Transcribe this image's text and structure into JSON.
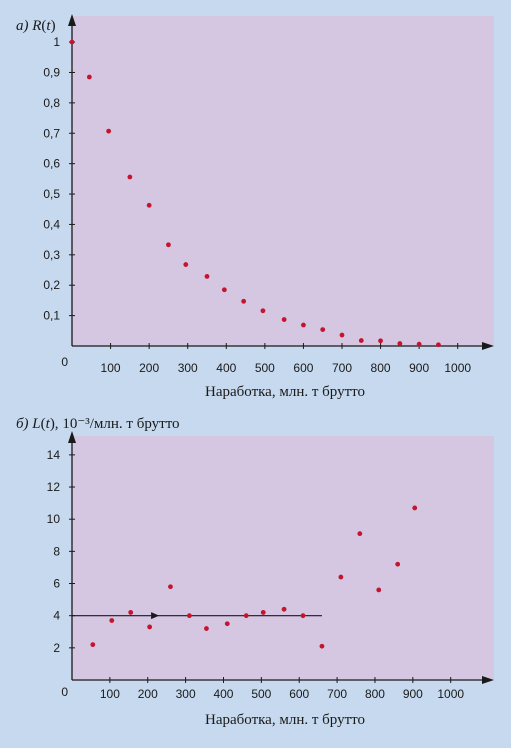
{
  "chart_data": [
    {
      "type": "scatter",
      "title_prefix": "а)",
      "ylabel_fn": "R",
      "ylabel_arg": "t",
      "ylabel_rest": "",
      "xlabel": "Наработка, млн. т брутто",
      "xlim": [
        0,
        1050
      ],
      "ylim": [
        0,
        1.02
      ],
      "xticks": [
        100,
        200,
        300,
        400,
        500,
        600,
        700,
        800,
        900,
        1000
      ],
      "xtick_labels": [
        "100",
        "200",
        "300",
        "400",
        "500",
        "600",
        "700",
        "800",
        "900",
        "1000"
      ],
      "yticks": [
        0.1,
        0.2,
        0.3,
        0.4,
        0.5,
        0.6,
        0.7,
        0.8,
        0.9,
        1.0
      ],
      "ytick_labels": [
        "0,1",
        "0,2",
        "0,3",
        "0,4",
        "0,5",
        "0,6",
        "0,7",
        "0,8",
        "0,9",
        "1"
      ],
      "origin_label": "0",
      "colors": {
        "plot_bg": "#d5c6e2",
        "point": "#c4152d",
        "axis": "#1a1a1a"
      },
      "points": [
        [
          0,
          1.0
        ],
        [
          45,
          0.885
        ],
        [
          95,
          0.707
        ],
        [
          150,
          0.556
        ],
        [
          200,
          0.463
        ],
        [
          250,
          0.333
        ],
        [
          295,
          0.268
        ],
        [
          350,
          0.229
        ],
        [
          395,
          0.185
        ],
        [
          445,
          0.147
        ],
        [
          495,
          0.116
        ],
        [
          550,
          0.087
        ],
        [
          600,
          0.069
        ],
        [
          650,
          0.054
        ],
        [
          700,
          0.036
        ],
        [
          750,
          0.018
        ],
        [
          800,
          0.017
        ],
        [
          850,
          0.008
        ],
        [
          900,
          0.006
        ],
        [
          950,
          0.004
        ]
      ]
    },
    {
      "type": "scatter",
      "title_prefix": "б)",
      "ylabel_fn": "L",
      "ylabel_arg": "t",
      "ylabel_rest": "10⁻³/млн. т брутто",
      "xlabel": "Наработка, млн. т брутто",
      "xlim": [
        0,
        1080
      ],
      "ylim": [
        0,
        14.8
      ],
      "xticks": [
        100,
        200,
        300,
        400,
        500,
        600,
        700,
        800,
        900,
        1000
      ],
      "xtick_labels": [
        "100",
        "200",
        "300",
        "400",
        "500",
        "600",
        "700",
        "800",
        "900",
        "1000"
      ],
      "yticks": [
        2,
        4,
        6,
        8,
        10,
        12,
        14
      ],
      "ytick_labels": [
        "2",
        "4",
        "6",
        "8",
        "10",
        "12",
        "14"
      ],
      "origin_label": "0",
      "colors": {
        "plot_bg": "#d5c6e2",
        "point": "#c4152d",
        "axis": "#1a1a1a"
      },
      "mean_line": {
        "y": 4.0,
        "x_end": 660,
        "arrow_x": 230
      },
      "points": [
        [
          55,
          2.2
        ],
        [
          105,
          3.7
        ],
        [
          155,
          4.2
        ],
        [
          205,
          3.3
        ],
        [
          260,
          5.8
        ],
        [
          310,
          4.0
        ],
        [
          355,
          3.2
        ],
        [
          410,
          3.5
        ],
        [
          460,
          4.0
        ],
        [
          505,
          4.2
        ],
        [
          560,
          4.4
        ],
        [
          610,
          4.0
        ],
        [
          660,
          2.1
        ],
        [
          710,
          6.4
        ],
        [
          760,
          9.1
        ],
        [
          810,
          5.6
        ],
        [
          860,
          7.2
        ],
        [
          905,
          10.7
        ]
      ]
    }
  ]
}
